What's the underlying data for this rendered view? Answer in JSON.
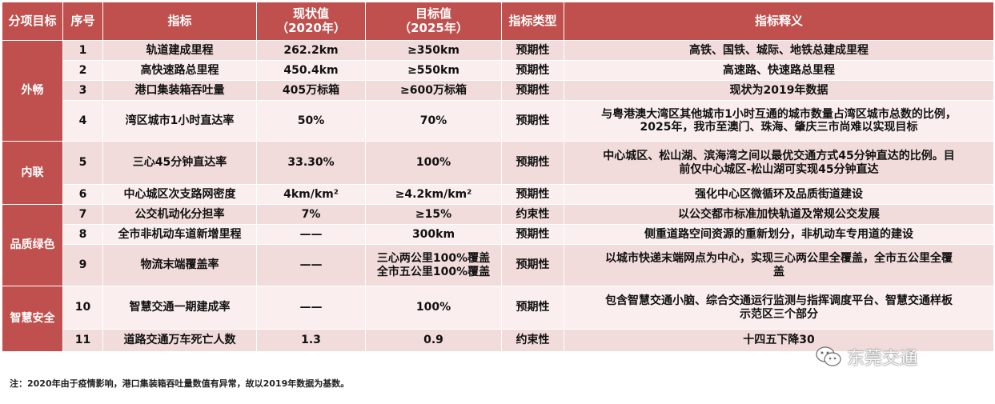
{
  "headers": {
    "category": "分项目标",
    "index": "序号",
    "indicator": "指标",
    "current_1": "现状值",
    "current_2": "（2020年）",
    "target_1": "目标值",
    "target_2": "（2025年）",
    "type": "指标类型",
    "definition": "指标释义"
  },
  "categories": [
    "外畅",
    "内联",
    "品质绿色",
    "智慧安全"
  ],
  "rows": [
    {
      "no": "1",
      "name": "轨道建成里程",
      "current": "262.2km",
      "target": "≥350km",
      "type": "预期性",
      "def": "高铁、国铁、城际、地铁总建成里程"
    },
    {
      "no": "2",
      "name": "高快速路总里程",
      "current": "450.4km",
      "target": "≥550km",
      "type": "预期性",
      "def": "高速路、快速路总里程"
    },
    {
      "no": "3",
      "name": "港口集装箱吞吐量",
      "current": "405万标箱",
      "target": "≥600万标箱",
      "type": "预期性",
      "def": "现状为2019年数据"
    },
    {
      "no": "4",
      "name": "湾区城市1小时直达率",
      "current": "50%",
      "target": "70%",
      "type": "预期性",
      "def_1": "与粤港澳大湾区其他城市1小时互通的城市数量占湾区城市总数的比例，",
      "def_2": "2025年，我市至澳门、珠海、肇庆三市尚难以实现目标"
    },
    {
      "no": "5",
      "name": "三心45分钟直达率",
      "current": "33.30%",
      "target": "100%",
      "type": "预期性",
      "def_1": "中心城区、松山湖、滨海湾之间以最优交通方式45分钟直达的比例。目",
      "def_2": "前仅中心城区-松山湖可实现45分钟直达"
    },
    {
      "no": "6",
      "name": "中心城区次支路网密度",
      "current": "4km/km²",
      "target": "≥4.2km/km²",
      "type": "预期性",
      "def": "强化中心区微循环及品质街道建设"
    },
    {
      "no": "7",
      "name": "公交机动化分担率",
      "current": "7%",
      "target": "≥15%",
      "type": "约束性",
      "def": "以公交都市标准加快轨道及常规公交发展"
    },
    {
      "no": "8",
      "name": "全市非机动车道新增里程",
      "current": "——",
      "target": "300km",
      "type": "预期性",
      "def": "侧重道路空间资源的重新划分，非机动车专用道的建设"
    },
    {
      "no": "9",
      "name": "物流末端覆盖率",
      "current": "——",
      "target_1": "三心两公里100%覆盖",
      "target_2": "全市五公里100%覆盖",
      "type": "预期性",
      "def_1": "以城市快递末端网点为中心，实现三心两公里全覆盖，全市五公里全覆",
      "def_2": "盖"
    },
    {
      "no": "10",
      "name": "智慧交通一期建成率",
      "current": "——",
      "target": "100%",
      "type": "预期性",
      "def_1": "包含智慧交通小脑、综合交通运行监测与指挥调度平台、智慧交通样板",
      "def_2": "示范区三个部分"
    },
    {
      "no": "11",
      "name": "道路交通万车死亡人数",
      "current": "1.3",
      "target": "0.9",
      "type": "约束性",
      "def": "十四五下降30"
    }
  ],
  "note": "注：2020年由于疫情影响，港口集装箱吞吐量数值有异常，故以2019年数据为基数。",
  "watermark": "东莞交通"
}
